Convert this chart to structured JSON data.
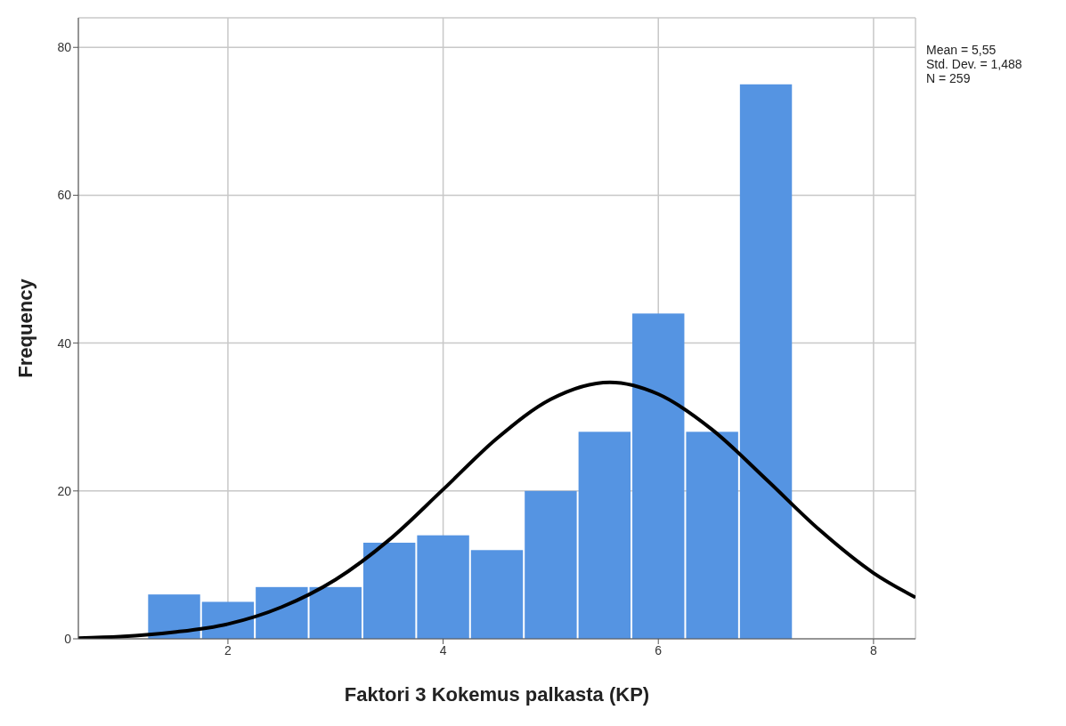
{
  "chart_data": {
    "type": "histogram",
    "xlabel": "Faktori 3 Kokemus palkasta (KP)",
    "ylabel": "Frequency",
    "bins": [
      1.25,
      1.75,
      2.25,
      2.75,
      3.25,
      3.75,
      4.25,
      4.75,
      5.25,
      5.75,
      6.25,
      6.75,
      7.25
    ],
    "values": [
      6,
      5,
      7,
      7,
      13,
      14,
      12,
      20,
      28,
      44,
      28,
      75
    ],
    "color": "#5594e2",
    "series": [
      {
        "type": "line",
        "color": "#000000",
        "x": [
          0.61,
          1,
          1.5,
          2,
          2.5,
          3,
          3.5,
          4,
          4.5,
          5,
          5.55,
          6,
          6.5,
          7,
          7.5,
          8,
          8.39
        ],
        "values": [
          0.1,
          0.3,
          0.9,
          2,
          4.3,
          8,
          13.4,
          20.2,
          27.1,
          32.4,
          34.7,
          33.1,
          28.3,
          21.6,
          14.7,
          8.9,
          5.6
        ]
      }
    ],
    "xlim": [
      0.61,
      8.39
    ],
    "ylim": [
      0,
      84
    ],
    "xticks": [
      2,
      4,
      6,
      8
    ],
    "yticks": [
      0,
      20,
      40,
      60,
      80
    ],
    "grid": true,
    "annotations": [
      "Mean = 5,55",
      "Std. Dev. = 1,488",
      "N = 259"
    ]
  }
}
